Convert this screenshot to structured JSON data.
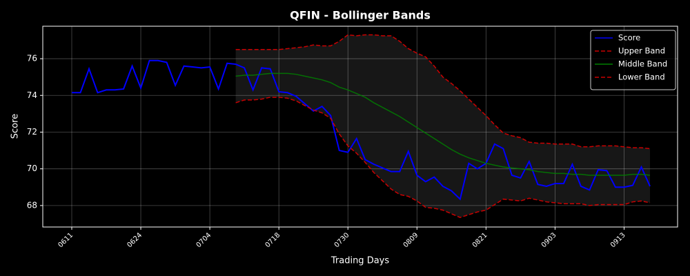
{
  "chart_data": {
    "type": "line",
    "title": "QFIN - Bollinger Bands",
    "xlabel": "Trading Days",
    "ylabel": "Score",
    "categories": [
      "0611",
      null,
      null,
      null,
      null,
      null,
      null,
      null,
      "0624",
      null,
      null,
      null,
      null,
      null,
      null,
      null,
      "0704",
      null,
      null,
      null,
      null,
      null,
      null,
      null,
      "0718",
      null,
      null,
      null,
      null,
      null,
      null,
      null,
      "0730",
      null,
      null,
      null,
      null,
      null,
      null,
      null,
      "0809",
      null,
      null,
      null,
      null,
      null,
      null,
      null,
      "0821",
      null,
      null,
      null,
      null,
      null,
      null,
      null,
      "0903",
      null,
      null,
      null,
      null,
      null,
      null,
      null,
      "0913",
      null,
      null,
      null
    ],
    "ylim": [
      66.83,
      77.77
    ],
    "yticks": [
      68,
      70,
      72,
      74,
      76
    ],
    "grid": true,
    "legend": "upper right",
    "band_fill": true,
    "series": [
      {
        "name": "Score",
        "color": "#0000ff",
        "style": "solid",
        "values": [
          74.15,
          74.15,
          75.45,
          74.15,
          74.3,
          74.3,
          74.35,
          75.6,
          74.4,
          75.9,
          75.9,
          75.8,
          74.55,
          75.6,
          75.55,
          75.5,
          75.55,
          74.35,
          75.75,
          75.7,
          75.5,
          74.3,
          75.5,
          75.45,
          74.2,
          74.15,
          73.95,
          73.55,
          73.15,
          73.4,
          72.9,
          71.0,
          70.9,
          71.65,
          70.5,
          70.25,
          70.05,
          69.85,
          69.85,
          70.95,
          69.65,
          69.3,
          69.55,
          69.05,
          68.8,
          68.35,
          70.3,
          70.0,
          70.3,
          71.35,
          71.1,
          69.65,
          69.5,
          70.4,
          69.15,
          69.05,
          69.2,
          69.2,
          70.25,
          69.05,
          68.85,
          69.95,
          69.9,
          69.0,
          69.0,
          69.1,
          70.1,
          69.05
        ]
      },
      {
        "name": "Upper Band",
        "color": "#cc0000",
        "style": "dashed",
        "values": [
          null,
          null,
          null,
          null,
          null,
          null,
          null,
          null,
          null,
          null,
          null,
          null,
          null,
          null,
          null,
          null,
          null,
          null,
          null,
          76.5,
          76.5,
          76.5,
          76.5,
          76.5,
          76.5,
          76.55,
          76.6,
          76.65,
          76.75,
          76.7,
          76.7,
          76.95,
          77.3,
          77.25,
          77.3,
          77.3,
          77.25,
          77.25,
          76.95,
          76.55,
          76.3,
          76.1,
          75.6,
          75.0,
          74.65,
          74.25,
          73.8,
          73.35,
          72.9,
          72.4,
          71.95,
          71.8,
          71.7,
          71.45,
          71.4,
          71.4,
          71.35,
          71.35,
          71.35,
          71.2,
          71.2,
          71.25,
          71.25,
          71.25,
          71.2,
          71.15,
          71.15,
          71.1
        ]
      },
      {
        "name": "Middle Band",
        "color": "#008000",
        "style": "solid",
        "values": [
          null,
          null,
          null,
          null,
          null,
          null,
          null,
          null,
          null,
          null,
          null,
          null,
          null,
          null,
          null,
          null,
          null,
          null,
          null,
          75.05,
          75.1,
          75.1,
          75.15,
          75.2,
          75.2,
          75.2,
          75.15,
          75.05,
          74.95,
          74.85,
          74.7,
          74.45,
          74.3,
          74.1,
          73.9,
          73.6,
          73.35,
          73.1,
          72.85,
          72.55,
          72.25,
          71.95,
          71.65,
          71.35,
          71.05,
          70.8,
          70.6,
          70.45,
          70.3,
          70.2,
          70.1,
          70.05,
          70.0,
          69.95,
          69.85,
          69.8,
          69.75,
          69.75,
          69.7,
          69.7,
          69.65,
          69.65,
          69.65,
          69.65,
          69.65,
          69.7,
          69.7,
          69.65
        ]
      },
      {
        "name": "Lower Band",
        "color": "#cc0000",
        "style": "dashed",
        "values": [
          null,
          null,
          null,
          null,
          null,
          null,
          null,
          null,
          null,
          null,
          null,
          null,
          null,
          null,
          null,
          null,
          null,
          null,
          null,
          73.6,
          73.75,
          73.75,
          73.8,
          73.9,
          73.9,
          73.85,
          73.7,
          73.45,
          73.2,
          73.05,
          72.75,
          71.9,
          71.25,
          70.85,
          70.35,
          69.8,
          69.35,
          68.9,
          68.6,
          68.5,
          68.25,
          67.9,
          67.85,
          67.75,
          67.55,
          67.35,
          67.5,
          67.65,
          67.75,
          68.05,
          68.35,
          68.3,
          68.25,
          68.4,
          68.3,
          68.2,
          68.15,
          68.1,
          68.1,
          68.1,
          68.0,
          68.05,
          68.05,
          68.05,
          68.05,
          68.2,
          68.25,
          68.15
        ]
      }
    ]
  }
}
